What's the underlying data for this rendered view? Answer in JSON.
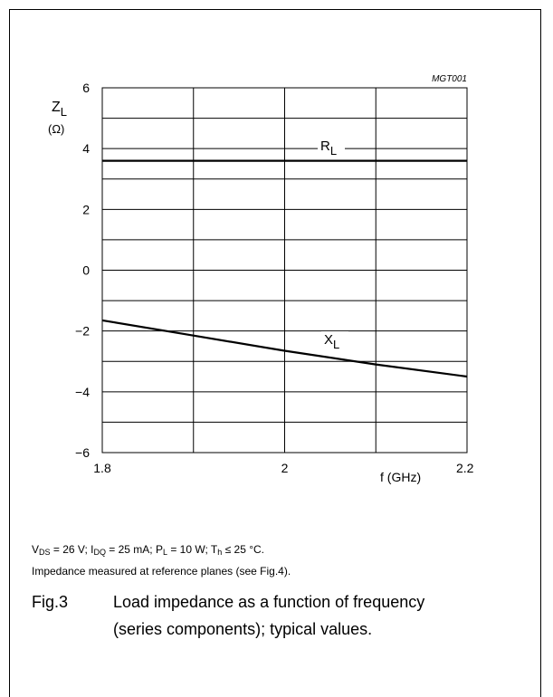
{
  "chart_data": {
    "type": "line",
    "code": "MGT001",
    "xlabel": "f (GHz)",
    "ylabel": {
      "symbol": "Z",
      "sub": "L",
      "unit": "(Ω)"
    },
    "xlim": [
      1.8,
      2.2
    ],
    "ylim": [
      -6,
      6
    ],
    "x_ticks": [
      1.8,
      2,
      2.2
    ],
    "x_tick_labels": [
      "1.8",
      "2",
      "2.2"
    ],
    "y_ticks": [
      -6,
      -4,
      -2,
      0,
      2,
      4,
      6
    ],
    "y_tick_labels": [
      "−6",
      "−4",
      "−2",
      "0",
      "2",
      "4",
      "6"
    ],
    "grid": true,
    "series": [
      {
        "name": "R",
        "sub": "L",
        "x": [
          1.8,
          2.2
        ],
        "y": [
          3.6,
          3.6
        ]
      },
      {
        "name": "X",
        "sub": "L",
        "x": [
          1.8,
          1.9,
          2.0,
          2.1,
          2.2
        ],
        "y": [
          -1.65,
          -2.15,
          -2.65,
          -3.1,
          -3.5
        ]
      }
    ]
  },
  "conditions": {
    "line1": [
      {
        "t": "V"
      },
      {
        "s": "DS"
      },
      {
        "t": " = 26 V; I"
      },
      {
        "s": "DQ"
      },
      {
        "t": " = 25 mA; P"
      },
      {
        "s": "L"
      },
      {
        "t": " = 10 W; T"
      },
      {
        "s": "h"
      },
      {
        "t": " ≤ 25 °C."
      }
    ],
    "line2": "Impedance measured at reference planes (see Fig.4)."
  },
  "caption": {
    "fig": "Fig.3",
    "line1": "Load impedance as a function of frequency",
    "line2": "(series components); typical values."
  }
}
